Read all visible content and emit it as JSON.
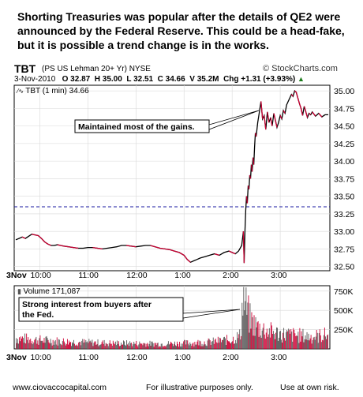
{
  "headline": "Shorting Treasuries was popular after the details of QE2 were announced by the Federal Reserve.  This could be a head-fake, but it is possible a trend change is in the works.",
  "header": {
    "ticker": "TBT",
    "description": "(PS US Lehman 20+ Yr) NYSE",
    "brand": "© StockCharts.com",
    "date": "3-Nov-2010",
    "open": "O 32.87",
    "high": "H 35.00",
    "low": "L 32.51",
    "close": "C 34.66",
    "volume": "V 35.2M",
    "change_label": "Chg",
    "change_value": "+1.31 (+3.93%)",
    "arrow": "▲"
  },
  "footer": {
    "site": "www.ciovaccocapital.com",
    "illustrative": "For illustrative purposes only.",
    "risk": "Use at own risk."
  },
  "colors": {
    "price_line": "#000000",
    "price_down": "#cc0033",
    "baseline": "#1a1aa0",
    "grid": "#d9d9d9",
    "vol_up": "#555555",
    "vol_down": "#cc0033"
  },
  "chart_data": [
    {
      "type": "line",
      "legend": "TBT (1 min) 34.66",
      "y_ticks": [
        32.5,
        32.75,
        33.0,
        33.25,
        33.5,
        33.75,
        34.0,
        34.25,
        34.5,
        34.75,
        35.0
      ],
      "y_tick_labels": [
        "32.50",
        "32.75",
        "33.00",
        "33.25",
        "33.50",
        "33.75",
        "34.00",
        "34.25",
        "34.50",
        "34.75",
        "35.00"
      ],
      "ylim": [
        32.44,
        35.08
      ],
      "x_ticks": [
        "3Nov",
        "10:00",
        "11:00",
        "12:00",
        "1:00",
        "2:00",
        "3:00"
      ],
      "reference_line": 33.35,
      "annotation": "Maintained most of the gains.",
      "points": [
        [
          "9:30",
          32.88
        ],
        [
          "9:34",
          32.9
        ],
        [
          "9:38",
          32.92
        ],
        [
          "9:42",
          32.9
        ],
        [
          "9:46",
          32.93
        ],
        [
          "9:50",
          32.96
        ],
        [
          "9:54",
          32.95
        ],
        [
          "9:58",
          32.94
        ],
        [
          "10:02",
          32.9
        ],
        [
          "10:06",
          32.85
        ],
        [
          "10:10",
          32.82
        ],
        [
          "10:14",
          32.8
        ],
        [
          "10:18",
          32.8
        ],
        [
          "10:22",
          32.81
        ],
        [
          "10:26",
          32.8
        ],
        [
          "10:30",
          32.79
        ],
        [
          "10:36",
          32.78
        ],
        [
          "10:42",
          32.77
        ],
        [
          "10:48",
          32.76
        ],
        [
          "10:54",
          32.76
        ],
        [
          "11:00",
          32.77
        ],
        [
          "11:06",
          32.77
        ],
        [
          "11:12",
          32.76
        ],
        [
          "11:18",
          32.75
        ],
        [
          "11:24",
          32.76
        ],
        [
          "11:30",
          32.77
        ],
        [
          "11:36",
          32.78
        ],
        [
          "11:42",
          32.8
        ],
        [
          "11:48",
          32.8
        ],
        [
          "11:54",
          32.79
        ],
        [
          "12:00",
          32.78
        ],
        [
          "12:06",
          32.79
        ],
        [
          "12:12",
          32.8
        ],
        [
          "12:18",
          32.8
        ],
        [
          "12:24",
          32.78
        ],
        [
          "12:30",
          32.76
        ],
        [
          "12:36",
          32.75
        ],
        [
          "12:42",
          32.74
        ],
        [
          "12:48",
          32.72
        ],
        [
          "12:54",
          32.7
        ],
        [
          "1:00",
          32.66
        ],
        [
          "1:04",
          32.6
        ],
        [
          "1:08",
          32.56
        ],
        [
          "1:12",
          32.58
        ],
        [
          "1:16",
          32.6
        ],
        [
          "1:20",
          32.62
        ],
        [
          "1:26",
          32.64
        ],
        [
          "1:32",
          32.66
        ],
        [
          "1:38",
          32.68
        ],
        [
          "1:44",
          32.66
        ],
        [
          "1:50",
          32.7
        ],
        [
          "1:56",
          32.72
        ],
        [
          "2:00",
          32.7
        ],
        [
          "2:04",
          32.68
        ],
        [
          "2:08",
          32.72
        ],
        [
          "2:12",
          32.8
        ],
        [
          "2:14",
          33.0
        ],
        [
          "2:15",
          32.55
        ],
        [
          "2:16",
          33.0
        ],
        [
          "2:17",
          33.3
        ],
        [
          "2:18",
          33.5
        ],
        [
          "2:19",
          33.4
        ],
        [
          "2:20",
          33.65
        ],
        [
          "2:21",
          33.6
        ],
        [
          "2:22",
          33.8
        ],
        [
          "2:23",
          33.75
        ],
        [
          "2:24",
          33.95
        ],
        [
          "2:25",
          33.85
        ],
        [
          "2:26",
          34.05
        ],
        [
          "2:27",
          33.95
        ],
        [
          "2:28",
          34.2
        ],
        [
          "2:29",
          34.4
        ],
        [
          "2:30",
          34.35
        ],
        [
          "2:32",
          34.55
        ],
        [
          "2:34",
          34.7
        ],
        [
          "2:36",
          34.85
        ],
        [
          "2:38",
          34.6
        ],
        [
          "2:40",
          34.65
        ],
        [
          "2:42",
          34.45
        ],
        [
          "2:44",
          34.7
        ],
        [
          "2:46",
          34.55
        ],
        [
          "2:48",
          34.62
        ],
        [
          "2:50",
          34.5
        ],
        [
          "2:52",
          34.68
        ],
        [
          "2:54",
          34.58
        ],
        [
          "2:56",
          34.48
        ],
        [
          "2:58",
          34.55
        ],
        [
          "3:00",
          34.65
        ],
        [
          "3:02",
          34.6
        ],
        [
          "3:04",
          34.72
        ],
        [
          "3:06",
          34.68
        ],
        [
          "3:08",
          34.8
        ],
        [
          "3:10",
          34.85
        ],
        [
          "3:12",
          34.9
        ],
        [
          "3:14",
          34.95
        ],
        [
          "3:16",
          34.92
        ],
        [
          "3:18",
          35.0
        ],
        [
          "3:20",
          34.98
        ],
        [
          "3:22",
          34.9
        ],
        [
          "3:24",
          34.82
        ],
        [
          "3:26",
          34.75
        ],
        [
          "3:28",
          34.65
        ],
        [
          "3:30",
          34.78
        ],
        [
          "3:32",
          34.7
        ],
        [
          "3:34",
          34.62
        ],
        [
          "3:36",
          34.68
        ],
        [
          "3:38",
          34.66
        ],
        [
          "3:40",
          34.7
        ],
        [
          "3:44",
          34.64
        ],
        [
          "3:48",
          34.68
        ],
        [
          "3:52",
          34.63
        ],
        [
          "3:56",
          34.66
        ],
        [
          "4:00",
          34.66
        ]
      ]
    },
    {
      "type": "bar",
      "legend": "Volume 171,087",
      "annotation": "Strong interest from buyers after the Fed.",
      "y_ticks": [
        250000,
        500000,
        750000
      ],
      "y_tick_labels": [
        "250K",
        "500K",
        "750K"
      ],
      "ylim": [
        0,
        820000
      ],
      "x_ticks": [
        "3Nov",
        "10:00",
        "11:00",
        "12:00",
        "1:00",
        "2:00",
        "3:00"
      ],
      "profile": [
        [
          "9:30",
          160000
        ],
        [
          "10:00",
          130000
        ],
        [
          "10:30",
          110000
        ],
        [
          "11:00",
          95000
        ],
        [
          "11:30",
          85000
        ],
        [
          "12:00",
          80000
        ],
        [
          "12:30",
          75000
        ],
        [
          "1:00",
          85000
        ],
        [
          "1:30",
          100000
        ],
        [
          "2:00",
          140000
        ],
        [
          "2:10",
          200000
        ],
        [
          "2:13",
          780000
        ],
        [
          "2:16",
          650000
        ],
        [
          "2:22",
          430000
        ],
        [
          "2:30",
          330000
        ],
        [
          "2:45",
          260000
        ],
        [
          "3:00",
          220000
        ],
        [
          "3:20",
          200000
        ],
        [
          "3:40",
          180000
        ],
        [
          "4:00",
          210000
        ]
      ]
    }
  ]
}
